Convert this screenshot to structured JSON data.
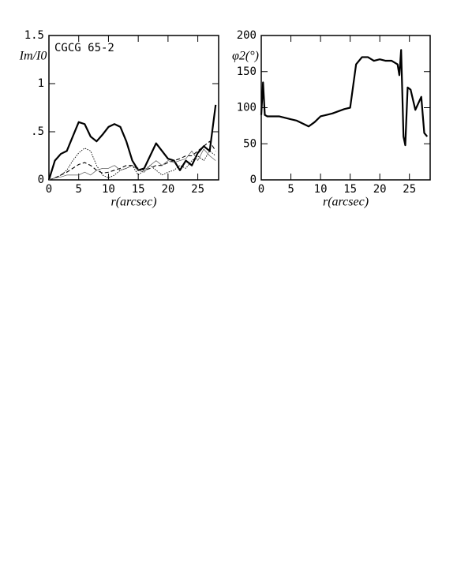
{
  "chart_data": [
    {
      "type": "line",
      "annotation": "CGCG 65-2",
      "xlabel": "r(arcsec)",
      "ylabel": "Im/I0",
      "x": [
        0,
        1,
        2,
        3,
        4,
        5,
        6,
        7,
        8,
        9,
        10,
        11,
        12,
        13,
        14,
        15,
        16,
        17,
        18,
        19,
        20,
        21,
        22,
        23,
        24,
        25,
        26,
        27,
        28
      ],
      "series": [
        {
          "color": "#000",
          "width": 2.2,
          "dash": "none",
          "values": [
            0,
            0.2,
            0.27,
            0.3,
            0.45,
            0.6,
            0.58,
            0.45,
            0.4,
            0.47,
            0.55,
            0.58,
            0.55,
            0.4,
            0.2,
            0.1,
            0.12,
            0.25,
            0.38,
            0.3,
            0.22,
            0.2,
            0.1,
            0.2,
            0.15,
            0.28,
            0.35,
            0.3,
            0.78
          ]
        },
        {
          "color": "#000",
          "width": 0.9,
          "dash": "1.5 1.5",
          "values": [
            0,
            0.02,
            0.05,
            0.1,
            0.2,
            0.28,
            0.33,
            0.3,
            0.15,
            0.05,
            0.02,
            0.05,
            0.1,
            0.12,
            0.15,
            0.05,
            0.1,
            0.15,
            0.1,
            0.05,
            0.08,
            0.1,
            0.15,
            0.12,
            0.2,
            0.25,
            0.2,
            0.3,
            0.25
          ]
        },
        {
          "color": "#000",
          "width": 1.1,
          "dash": "5 3",
          "values": [
            0,
            0.02,
            0.05,
            0.08,
            0.12,
            0.16,
            0.18,
            0.15,
            0.1,
            0.07,
            0.08,
            0.1,
            0.12,
            0.15,
            0.15,
            0.12,
            0.1,
            0.12,
            0.15,
            0.15,
            0.18,
            0.2,
            0.22,
            0.25,
            0.25,
            0.3,
            0.35,
            0.4,
            0.3
          ]
        },
        {
          "color": "#555",
          "width": 0.7,
          "dash": "none",
          "values": [
            0,
            0.02,
            0.03,
            0.05,
            0.05,
            0.05,
            0.08,
            0.05,
            0.1,
            0.12,
            0.12,
            0.15,
            0.1,
            0.12,
            0.15,
            0.1,
            0.08,
            0.15,
            0.2,
            0.15,
            0.2,
            0.18,
            0.2,
            0.22,
            0.3,
            0.2,
            0.32,
            0.25,
            0.2
          ]
        }
      ],
      "xlim": [
        0,
        28.5
      ],
      "xticks": [
        0,
        5,
        10,
        15,
        20,
        25
      ],
      "ylim": [
        0,
        1.5
      ],
      "yticks": [
        0,
        {
          "value": 0.5,
          "label": ".5"
        },
        1,
        1.5
      ]
    },
    {
      "type": "line",
      "xlabel": "r(arcsec)",
      "ylabel": "φ2(°)",
      "x": [
        0,
        0.3,
        0.6,
        1,
        2,
        3,
        4,
        5,
        6,
        7,
        8,
        9,
        10,
        11,
        12,
        13,
        14,
        15,
        15.5,
        16,
        17,
        18,
        19,
        20,
        21,
        22,
        23,
        23.3,
        23.6,
        24,
        24.3,
        24.7,
        25.2,
        26,
        27,
        27.5,
        28
      ],
      "series": [
        {
          "color": "#000",
          "width": 2.2,
          "dash": "none",
          "values": [
            90,
            135,
            90,
            88,
            88,
            88,
            86,
            84,
            82,
            78,
            74,
            80,
            88,
            90,
            92,
            95,
            98,
            100,
            130,
            160,
            170,
            170,
            165,
            167,
            165,
            165,
            160,
            145,
            180,
            60,
            48,
            128,
            125,
            97,
            115,
            65,
            60
          ]
        }
      ],
      "xlim": [
        0,
        28.5
      ],
      "xticks": [
        0,
        5,
        10,
        15,
        20,
        25
      ],
      "ylim": [
        0,
        200
      ],
      "yticks": [
        0,
        50,
        100,
        150,
        200
      ]
    }
  ]
}
